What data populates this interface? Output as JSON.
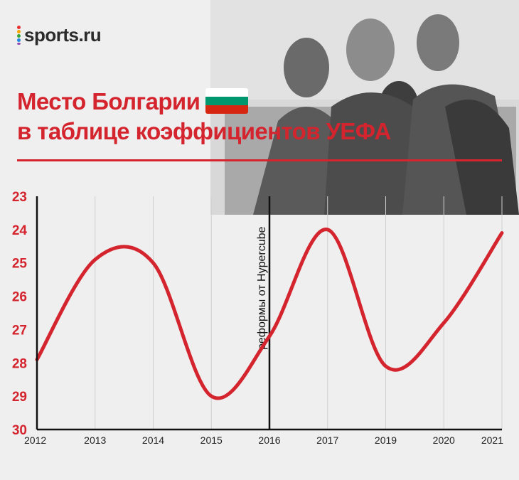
{
  "brand": {
    "logo_text": "sports.ru",
    "dot_colors": [
      "#e7312f",
      "#f7a600",
      "#37a53c",
      "#1e88e5",
      "#8e44ad"
    ]
  },
  "header": {
    "title_line1": "Место Болгарии",
    "title_line2": "в таблице коэффициентов УЕФА",
    "flag_colors": [
      "#ffffff",
      "#00966e",
      "#d62612"
    ],
    "accent_color": "#d4242e"
  },
  "chart_data": {
    "type": "line",
    "title": "Место Болгарии в таблице коэффициентов УЕФА",
    "x": [
      "2012",
      "2013",
      "2014",
      "2015",
      "2016",
      "2017",
      "2019",
      "2020",
      "2021"
    ],
    "series": [
      {
        "values": [
          27.9,
          24.9,
          25.0,
          29.0,
          27.2,
          24.0,
          28.1,
          26.8,
          24.1
        ],
        "color": "#d4242e"
      }
    ],
    "y_ticks": [
      "23",
      "24",
      "25",
      "26",
      "27",
      "28",
      "29",
      "30"
    ],
    "ylim": [
      23,
      30
    ],
    "y_inverted": true,
    "grid": {
      "vertical": true,
      "horizontal": false
    },
    "annotation": {
      "text": "реформы от Hypercube",
      "at_x": "2016"
    }
  }
}
